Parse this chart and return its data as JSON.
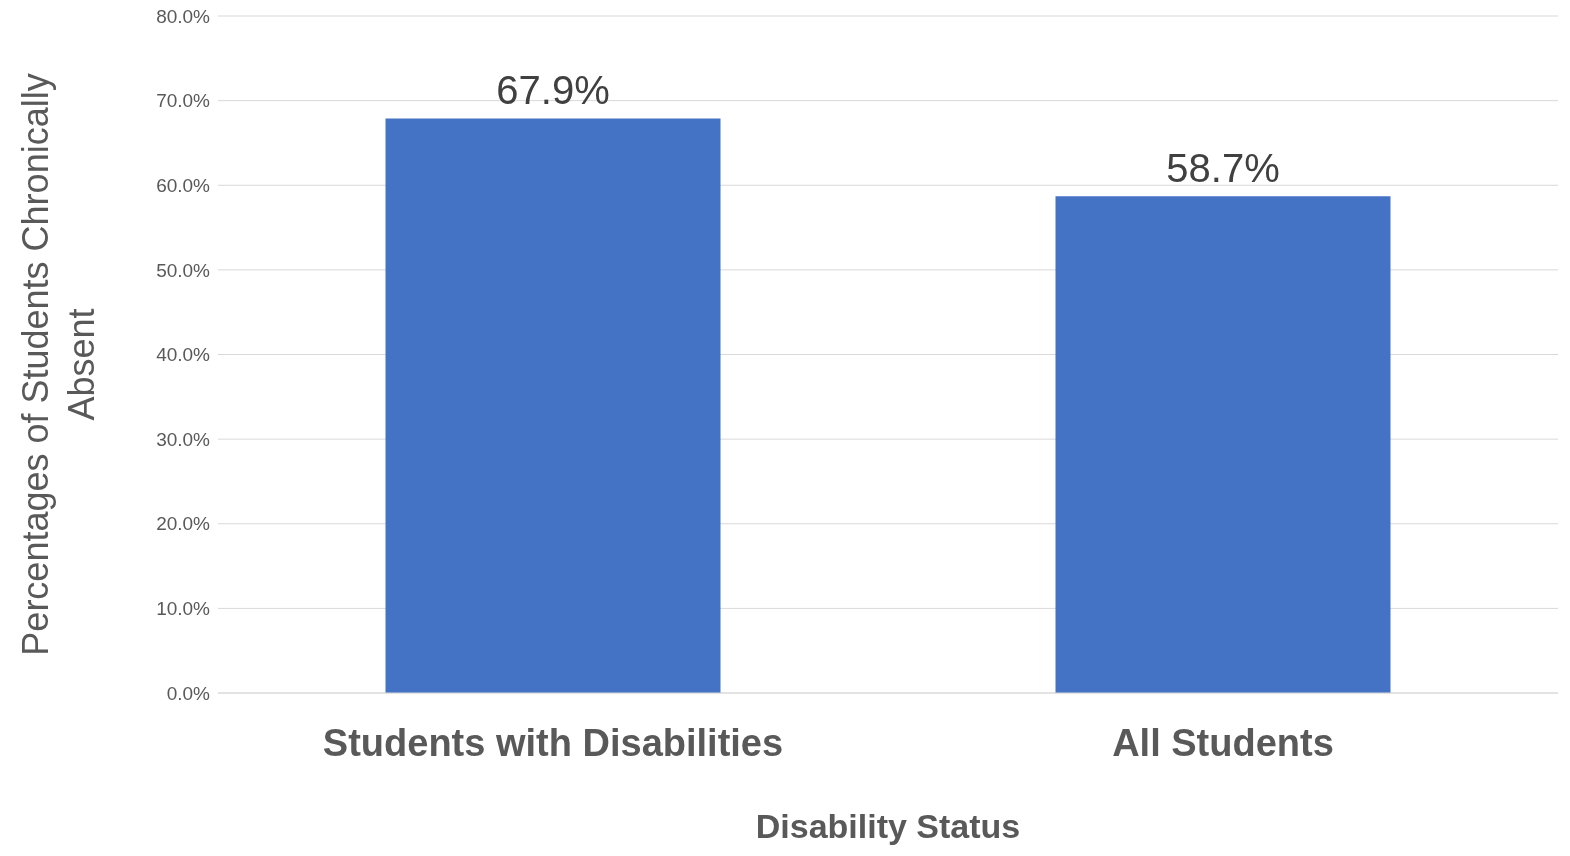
{
  "chart_data": {
    "type": "bar",
    "xlabel": "Disability Status",
    "ylabel": "Percentages of Students Chronically Absent",
    "categories": [
      "Students with Disabilities",
      "All Students"
    ],
    "values": [
      67.9,
      58.7
    ],
    "color": "#4472c4",
    "value_labels": [
      "67.9%",
      "58.7%"
    ],
    "ylim": [
      0,
      80
    ],
    "yticks": [
      {
        "value": 0,
        "label": "0.0%"
      },
      {
        "value": 10,
        "label": "10.0%"
      },
      {
        "value": 20,
        "label": "20.0%"
      },
      {
        "value": 30,
        "label": "30.0%"
      },
      {
        "value": 40,
        "label": "40.0%"
      },
      {
        "value": 50,
        "label": "50.0%"
      },
      {
        "value": 60,
        "label": "60.0%"
      },
      {
        "value": 70,
        "label": "70.0%"
      },
      {
        "value": 80,
        "label": "80.0%"
      }
    ],
    "grid": "y"
  }
}
